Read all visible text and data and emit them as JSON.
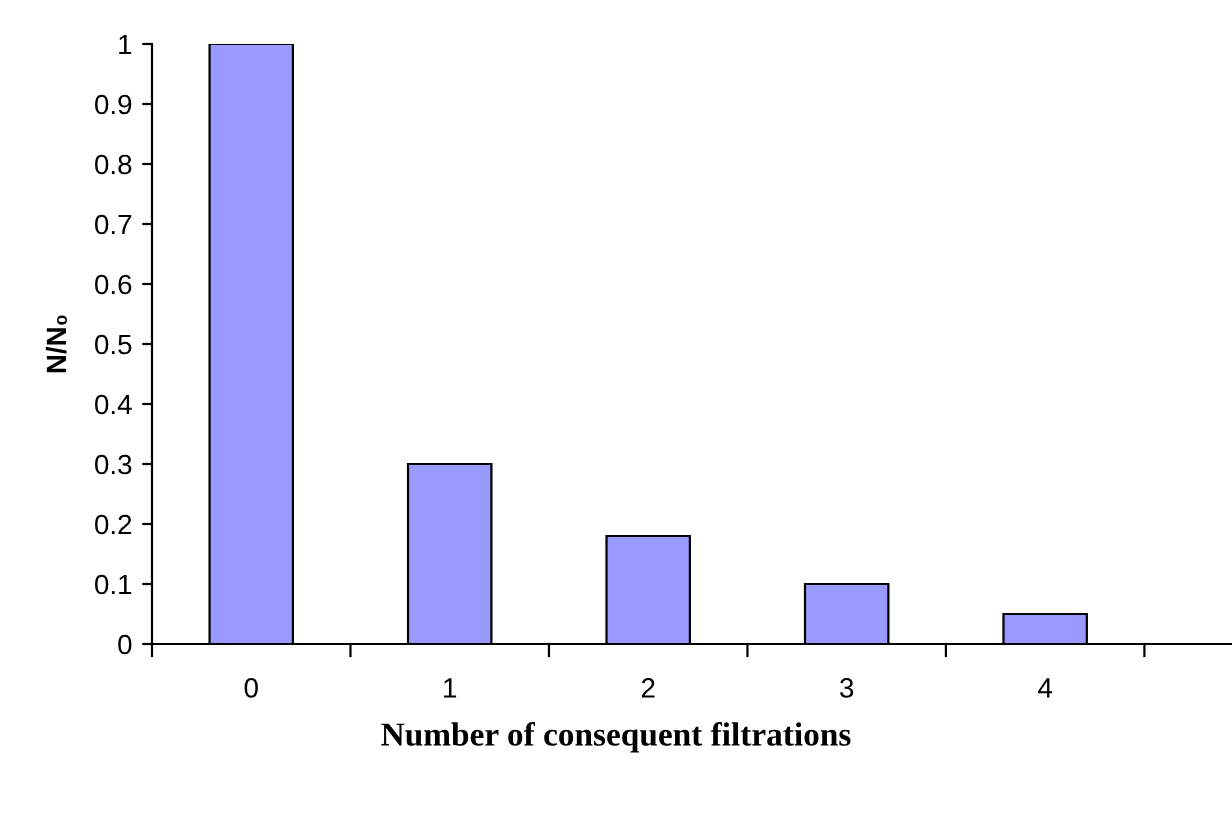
{
  "chart_data": {
    "type": "bar",
    "xlabel": "Number of consequent filtrations",
    "ylabel": "N/N₀",
    "categories": [
      "0",
      "1",
      "2",
      "3",
      "4",
      null
    ],
    "values": [
      1,
      0.3,
      0.18,
      0.1,
      0.05,
      null
    ],
    "color": "#9999ff",
    "ylim": [
      0,
      1
    ],
    "yticks": [
      0,
      0.1,
      0.2,
      0.3,
      0.4,
      0.5,
      0.6,
      0.7,
      0.8,
      0.9,
      1
    ],
    "grid": false
  }
}
